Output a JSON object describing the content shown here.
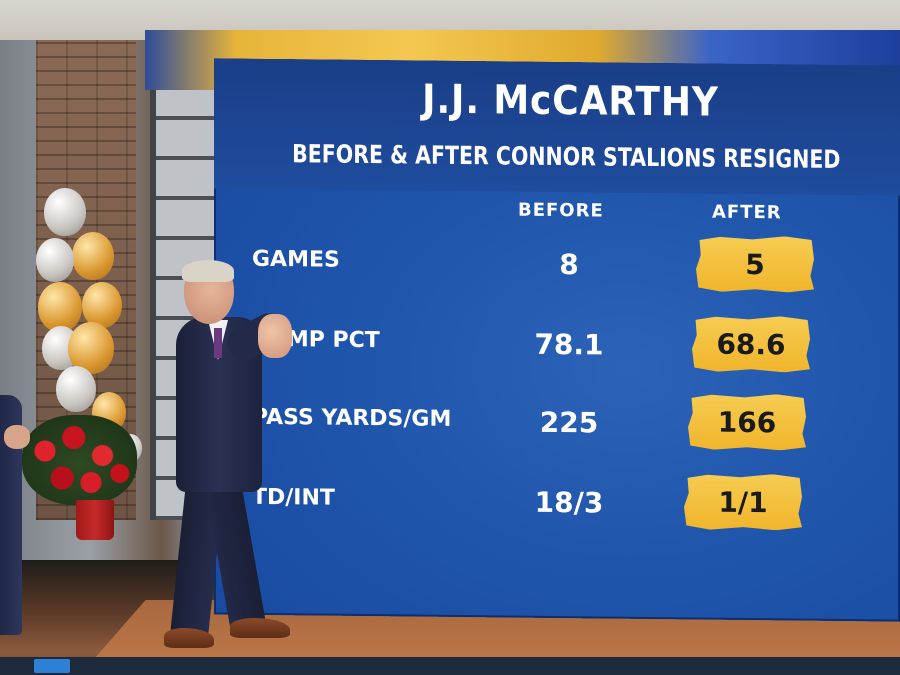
{
  "graphic": {
    "title": "J.J. McCARTHY",
    "subtitle": "BEFORE & AFTER CONNOR STALIONS RESIGNED",
    "columns": {
      "before": "BEFORE",
      "after": "AFTER"
    },
    "rows": [
      {
        "label": "GAMES",
        "before": "8",
        "after": "5"
      },
      {
        "label": "COMP PCT",
        "before": "78.1",
        "after": "68.6"
      },
      {
        "label": "PASS YARDS/GM",
        "before": "225",
        "after": "166"
      },
      {
        "label": "TD/INT",
        "before": "18/3",
        "after": "1/1"
      }
    ]
  },
  "colors": {
    "screen_blue": "#1f56ab",
    "highlight_gold": "#f6cc52",
    "text_white": "#ffffff"
  }
}
